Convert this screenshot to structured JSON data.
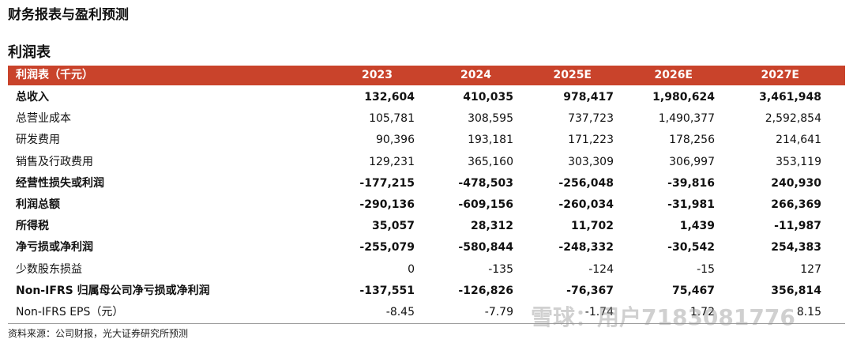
{
  "header": {
    "title": "财务报表与盈利预测"
  },
  "section_title": "利润表",
  "table": {
    "columns": [
      "利润表（千元）",
      "2023",
      "2024",
      "2025E",
      "2026E",
      "2027E"
    ],
    "rows": [
      {
        "label": "总收入",
        "bold": true,
        "cells": [
          "132,604",
          "410,035",
          "978,417",
          "1,980,624",
          "3,461,948"
        ]
      },
      {
        "label": "总营业成本",
        "bold": false,
        "cells": [
          "105,781",
          "308,595",
          "737,723",
          "1,490,377",
          "2,592,854"
        ]
      },
      {
        "label": "研发费用",
        "bold": false,
        "cells": [
          "90,396",
          "193,181",
          "171,223",
          "178,256",
          "214,641"
        ]
      },
      {
        "label": "销售及行政费用",
        "bold": false,
        "cells": [
          "129,231",
          "365,160",
          "303,309",
          "306,997",
          "353,119"
        ]
      },
      {
        "label": "经营性损失或利润",
        "bold": true,
        "cells": [
          "-177,215",
          "-478,503",
          "-256,048",
          "-39,816",
          "240,930"
        ]
      },
      {
        "label": "利润总额",
        "bold": true,
        "cells": [
          "-290,136",
          "-609,156",
          "-260,034",
          "-31,981",
          "266,369"
        ]
      },
      {
        "label": "所得税",
        "bold": true,
        "cells": [
          "35,057",
          "28,312",
          "11,702",
          "1,439",
          "-11,987"
        ]
      },
      {
        "label": "净亏损或净利润",
        "bold": true,
        "cells": [
          "-255,079",
          "-580,844",
          "-248,332",
          "-30,542",
          "254,383"
        ]
      },
      {
        "label": "少数股东损益",
        "bold": false,
        "cells": [
          "0",
          "-135",
          "-124",
          "-15",
          "127"
        ]
      },
      {
        "label": "Non-IFRS 归属母公司净亏损或净利润",
        "bold": true,
        "cells": [
          "-137,551",
          "-126,826",
          "-76,367",
          "75,467",
          "356,814"
        ]
      },
      {
        "label": "Non-IFRS EPS（元）",
        "bold": false,
        "cells": [
          "-8.45",
          "-7.79",
          "-1.74",
          "1.72",
          "8.15"
        ]
      }
    ]
  },
  "source": "资料来源：公司财报，光大证券研究所预测",
  "watermark": "雪球：用户7183081776"
}
